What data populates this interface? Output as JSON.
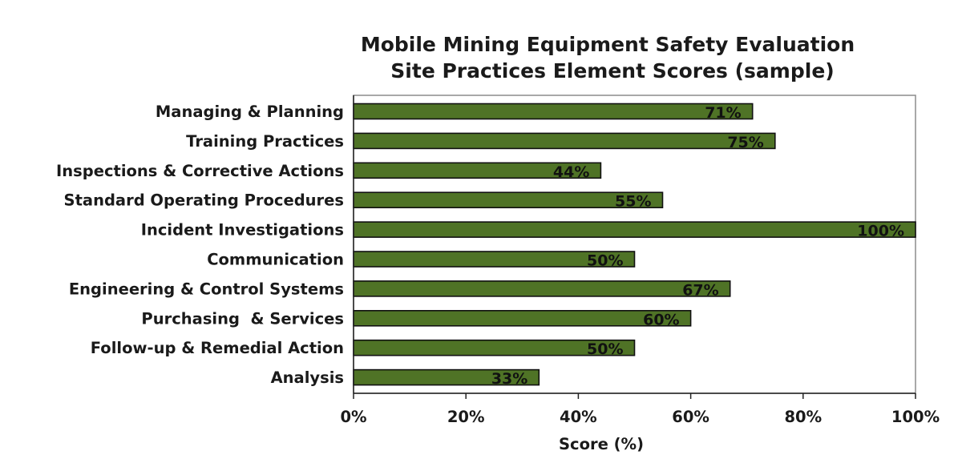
{
  "chart_data": {
    "type": "bar",
    "orientation": "horizontal",
    "title": "Mobile Mining Equipment Safety Evaluation",
    "subtitle": "Site Practices Element Scores (sample)",
    "xlabel": "Score (%)",
    "ylabel": "",
    "xlim": [
      0,
      100
    ],
    "x_ticks": [
      "0%",
      "20%",
      "40%",
      "60%",
      "80%",
      "100%"
    ],
    "x_tick_values": [
      0,
      20,
      40,
      60,
      80,
      100
    ],
    "categories": [
      "Managing & Planning",
      "Training Practices",
      "Inspections & Corrective Actions",
      "Standard Operating Procedures",
      "Incident Investigations",
      "Communication",
      "Engineering & Control Systems",
      "Purchasing  & Services",
      "Follow-up & Remedial Action",
      "Analysis"
    ],
    "values": [
      71,
      75,
      44,
      55,
      100,
      50,
      67,
      60,
      50,
      33
    ],
    "value_labels": [
      "71%",
      "75%",
      "44%",
      "55%",
      "100%",
      "50%",
      "67%",
      "60%",
      "50%",
      "33%"
    ],
    "grid": false,
    "legend": "none",
    "bar_color": "#4f7326",
    "bar_edge_color": "#111111"
  }
}
